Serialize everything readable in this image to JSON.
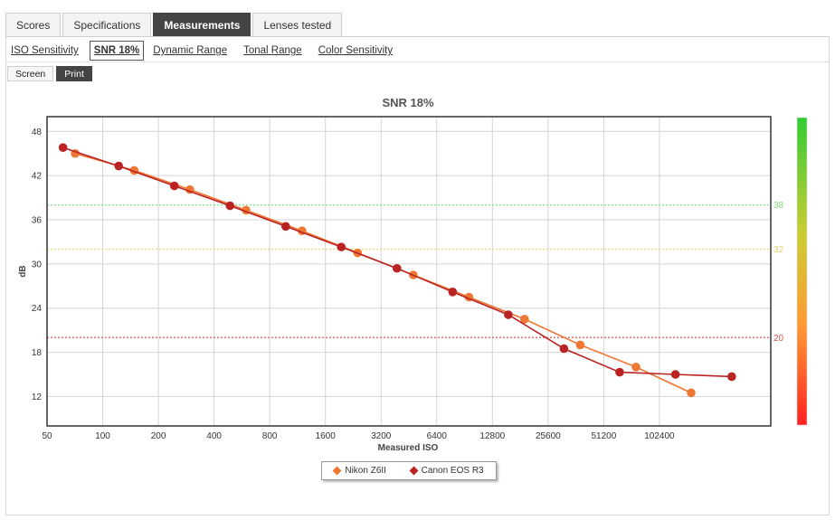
{
  "tabs": [
    {
      "label": "Scores"
    },
    {
      "label": "Specifications"
    },
    {
      "label": "Measurements",
      "active": true
    },
    {
      "label": "Lenses tested"
    }
  ],
  "subtabs": [
    {
      "label": "ISO Sensitivity"
    },
    {
      "label": "SNR 18%",
      "active": true
    },
    {
      "label": "Dynamic Range"
    },
    {
      "label": "Tonal Range"
    },
    {
      "label": "Color Sensitivity"
    }
  ],
  "modes": [
    {
      "label": "Screen"
    },
    {
      "label": "Print",
      "active": true
    }
  ],
  "chart_data": {
    "type": "line",
    "title": "SNR 18%",
    "xlabel": "Measured ISO",
    "ylabel": "dB",
    "x_scale": "log2",
    "xlim": [
      50,
      409600
    ],
    "ylim": [
      8,
      50
    ],
    "x_ticks": [
      50,
      100,
      200,
      400,
      800,
      1600,
      3200,
      6400,
      12800,
      25600,
      51200,
      102400
    ],
    "x_tick_labels": [
      "50",
      "100",
      "200",
      "400",
      "800",
      "1600",
      "3200",
      "6400",
      "12800",
      "25600",
      "51200",
      "102400"
    ],
    "y_ticks": [
      12,
      18,
      24,
      30,
      36,
      42,
      48
    ],
    "grid": true,
    "reference_lines": [
      {
        "value": 38,
        "label": "38",
        "color": "#7ee07e"
      },
      {
        "value": 32,
        "label": "32",
        "color": "#e8d36a"
      },
      {
        "value": 20,
        "label": "20",
        "color": "#d9534f"
      }
    ],
    "color_scale": {
      "colors": [
        "#33cc33",
        "#cccc33",
        "#ff9933",
        "#ff2222"
      ]
    },
    "legend_position": "bottom-center",
    "series": [
      {
        "name": "Nikon Z6II",
        "color": "#ee7733",
        "x": [
          71,
          148,
          296,
          596,
          1196,
          2390,
          4780,
          9560,
          19100,
          38200,
          76500,
          152000
        ],
        "y": [
          45.0,
          42.7,
          40.1,
          37.3,
          34.5,
          31.5,
          28.5,
          25.5,
          22.5,
          19.0,
          16.0,
          12.5
        ]
      },
      {
        "name": "Canon EOS R3",
        "color": "#bb2222",
        "x": [
          61,
          122,
          244,
          488,
          976,
          1950,
          3900,
          7800,
          15600,
          31200,
          62400,
          125000,
          252000
        ],
        "y": [
          45.8,
          43.3,
          40.6,
          37.9,
          35.1,
          32.3,
          29.4,
          26.2,
          23.1,
          18.5,
          15.3,
          15.0,
          14.7
        ]
      }
    ]
  }
}
